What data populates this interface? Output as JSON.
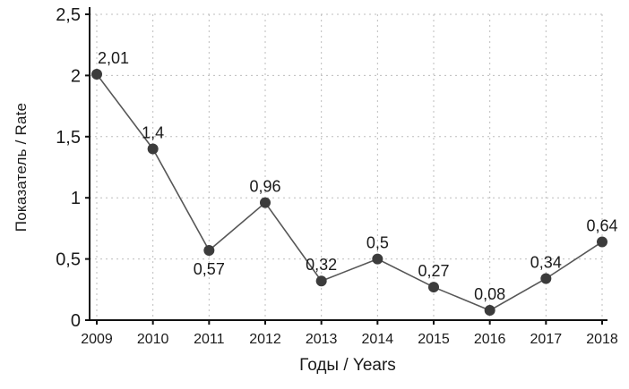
{
  "chart_data": {
    "type": "line",
    "categories": [
      "2009",
      "2010",
      "2011",
      "2012",
      "2013",
      "2014",
      "2015",
      "2016",
      "2017",
      "2018"
    ],
    "values": [
      2.01,
      1.4,
      0.57,
      0.96,
      0.32,
      0.5,
      0.27,
      0.08,
      0.34,
      0.64
    ],
    "point_labels": [
      "2,01",
      "1,4",
      "0,57",
      "0,96",
      "0,32",
      "0,5",
      "0,27",
      "0,08",
      "0,34",
      "0,64"
    ],
    "xlabel": "Годы / Years",
    "ylabel": "Показатель / Rate",
    "ylim": [
      0,
      2.5
    ],
    "ytick_values": [
      0,
      0.5,
      1,
      1.5,
      2,
      2.5
    ],
    "ytick_labels": [
      "0",
      "0,5",
      "1",
      "1,5",
      "2",
      "2,5"
    ],
    "grid": "dashed-both",
    "legend": "none",
    "below_label_indices": [
      2
    ],
    "colors": {
      "line": "#575757",
      "marker": "#3c3c3c",
      "grid": "#bdbdbd",
      "axis": "#111111",
      "text": "#1a1a1a",
      "background": "#ffffff"
    }
  }
}
